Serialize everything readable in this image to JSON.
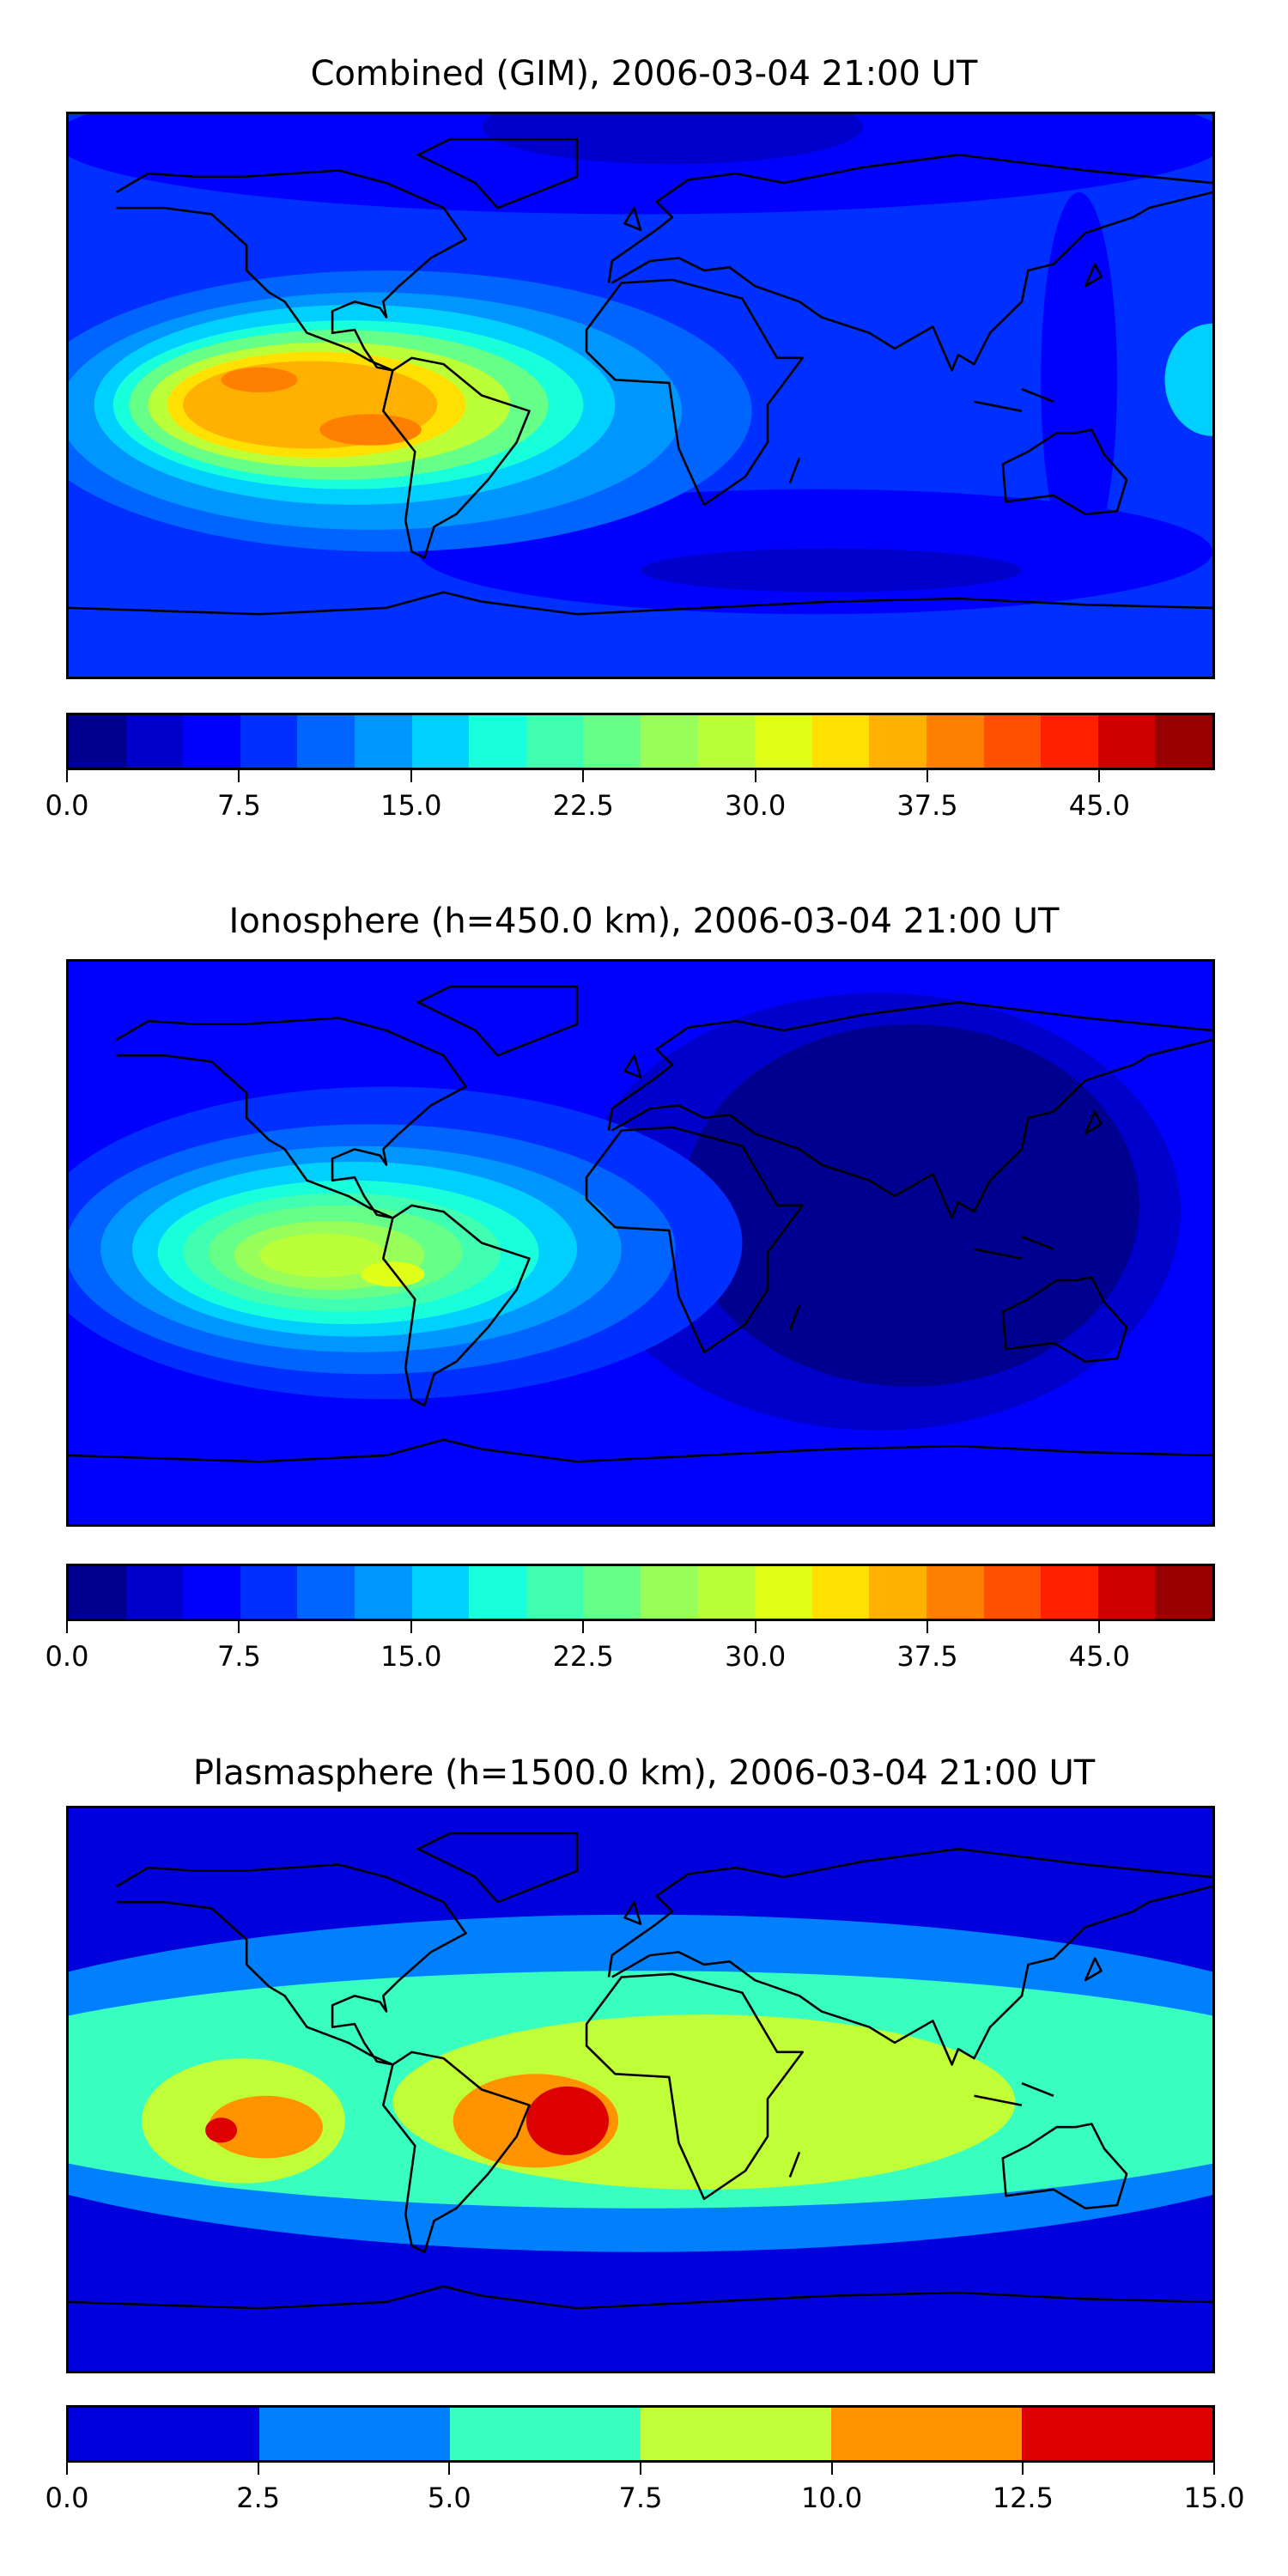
{
  "chart_data": [
    {
      "type": "heatmap",
      "title": "Combined (GIM), 2006-03-04 21:00 UT",
      "xlabel": "",
      "ylabel": "",
      "x_range": [
        -180,
        180
      ],
      "y_range": [
        -90,
        90
      ],
      "colorbar": {
        "range": [
          0,
          50
        ],
        "step": 2.5,
        "tick_labels": [
          "0.0",
          "7.5",
          "15.0",
          "22.5",
          "30.0",
          "37.5",
          "45.0"
        ],
        "tick_values": [
          0,
          7.5,
          15,
          22.5,
          30,
          37.5,
          45
        ],
        "colors": [
          "#000090",
          "#0000cc",
          "#0000ff",
          "#0030ff",
          "#0064ff",
          "#0096ff",
          "#00d0ff",
          "#18ffdc",
          "#40ffb0",
          "#66ff88",
          "#98ff5a",
          "#bbff38",
          "#e0ff18",
          "#ffe000",
          "#ffb000",
          "#ff8000",
          "#ff5000",
          "#ff2000",
          "#d00000",
          "#980000"
        ]
      },
      "features": [
        {
          "region": "equatorial Pacific / South America (lon -150..-30, lat 15..-25)",
          "peak_range": [
            35,
            40
          ]
        },
        {
          "region": "background",
          "value_range": [
            5,
            12.5
          ]
        }
      ]
    },
    {
      "type": "heatmap",
      "title": "Ionosphere  (h=450.0 km), 2006-03-04 21:00 UT",
      "xlabel": "",
      "ylabel": "",
      "x_range": [
        -180,
        180
      ],
      "y_range": [
        -90,
        90
      ],
      "colorbar": {
        "range": [
          0,
          50
        ],
        "step": 2.5,
        "tick_labels": [
          "0.0",
          "7.5",
          "15.0",
          "22.5",
          "30.0",
          "37.5",
          "45.0"
        ],
        "tick_values": [
          0,
          7.5,
          15,
          22.5,
          30,
          37.5,
          45
        ],
        "colors": [
          "#000090",
          "#0000cc",
          "#0000ff",
          "#0030ff",
          "#0064ff",
          "#0096ff",
          "#00d0ff",
          "#18ffdc",
          "#40ffb0",
          "#66ff88",
          "#98ff5a",
          "#bbff38",
          "#e0ff18",
          "#ffe000",
          "#ffb000",
          "#ff8000",
          "#ff5000",
          "#ff2000",
          "#d00000",
          "#980000"
        ]
      },
      "features": [
        {
          "region": "equatorial Pacific / South America",
          "peak_range": [
            30,
            32.5
          ]
        },
        {
          "region": "Africa / Asia night side",
          "value_range": [
            0,
            5
          ]
        }
      ]
    },
    {
      "type": "heatmap",
      "title": "Plasmasphere (h=1500.0 km), 2006-03-04 21:00 UT",
      "xlabel": "",
      "ylabel": "",
      "x_range": [
        -180,
        180
      ],
      "y_range": [
        -90,
        90
      ],
      "colorbar": {
        "range": [
          0,
          15
        ],
        "step": 2.5,
        "tick_labels": [
          "0.0",
          "2.5",
          "5.0",
          "7.5",
          "10.0",
          "12.5",
          "15.0"
        ],
        "tick_values": [
          0,
          2.5,
          5,
          7.5,
          10,
          12.5,
          15
        ],
        "colors": [
          "#0000dd",
          "#0080ff",
          "#38ffc0",
          "#c0ff38",
          "#ff9400",
          "#dd0000"
        ]
      },
      "features": [
        {
          "region": "lon -125 lat -10",
          "peak_range": [
            12.5,
            15
          ]
        },
        {
          "region": "lon -25 lat -10 (Atlantic)",
          "peak_range": [
            12.5,
            15
          ]
        },
        {
          "region": "high latitudes",
          "value_range": [
            0,
            2.5
          ]
        }
      ]
    }
  ]
}
